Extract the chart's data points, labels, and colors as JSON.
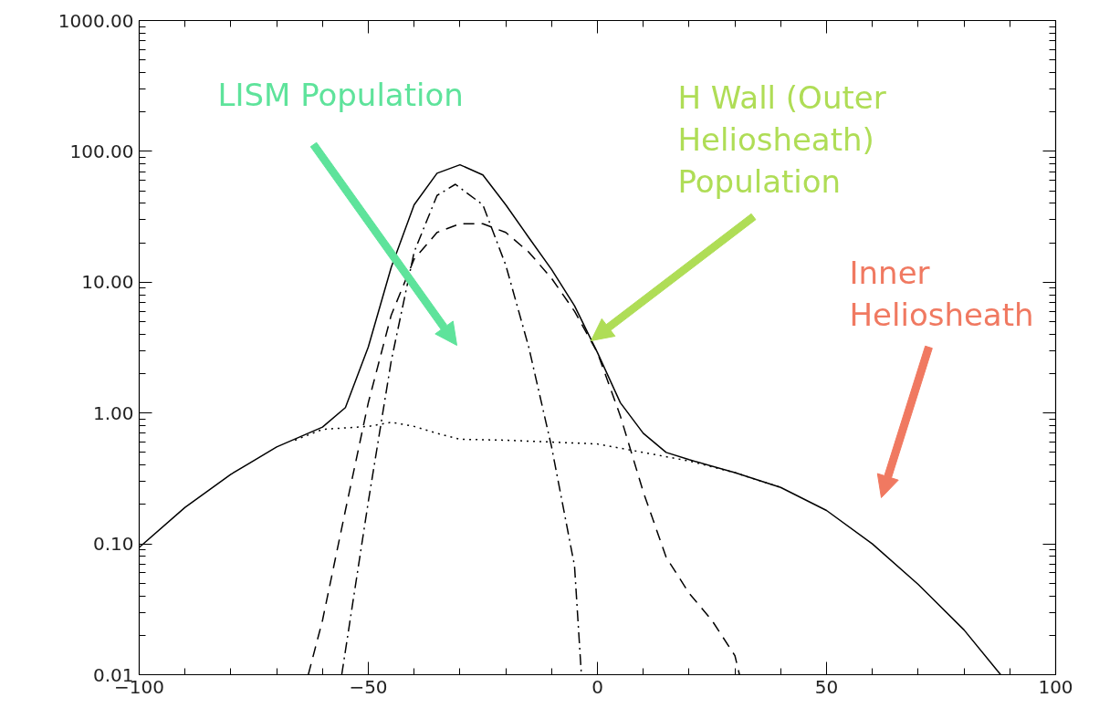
{
  "chart_data": {
    "type": "line",
    "log": "y",
    "grid": false,
    "xlim": [
      -100,
      100
    ],
    "ylim": [
      0.01,
      1000
    ],
    "xticks": [
      {
        "value": -100,
        "label": "−100"
      },
      {
        "value": -50,
        "label": "−50"
      },
      0,
      50,
      100
    ],
    "yticks": [
      {
        "value": 0.01,
        "label": "0.01"
      },
      {
        "value": 0.1,
        "label": "0.10"
      },
      {
        "value": 1,
        "label": "1.00"
      },
      {
        "value": 10,
        "label": "10.00"
      },
      {
        "value": 100,
        "label": "100.00"
      },
      {
        "value": 1000,
        "label": "1000.00"
      }
    ],
    "series": [
      {
        "color": "#000000",
        "line_style": "solid",
        "x": [
          -100,
          -90,
          -80,
          -70,
          -60,
          -55,
          -50,
          -45,
          -40,
          -35,
          -30,
          -25,
          -20,
          -15,
          -10,
          -5,
          0,
          5,
          10,
          15,
          20,
          30,
          40,
          50,
          60,
          70,
          80,
          88
        ],
        "values": [
          0.094,
          0.19,
          0.34,
          0.55,
          0.78,
          1.1,
          3.2,
          13,
          39,
          68,
          79,
          66,
          39,
          22,
          12.5,
          6.6,
          2.9,
          1.2,
          0.7,
          0.5,
          0.44,
          0.35,
          0.27,
          0.18,
          0.1,
          0.049,
          0.022,
          0.01
        ]
      },
      {
        "color": "#000000",
        "line_style": "dashdot",
        "x": [
          -55.8,
          -50,
          -45,
          -40,
          -35,
          -31,
          -25,
          -20,
          -15,
          -10,
          -5,
          -3.5
        ],
        "values": [
          0.01,
          0.21,
          2.5,
          17,
          46,
          56,
          39,
          13.5,
          3.2,
          0.55,
          0.068,
          0.01
        ]
      },
      {
        "color": "#000000",
        "line_style": "dashed",
        "x": [
          -63.1,
          -60,
          -55,
          -50,
          -45,
          -40,
          -35,
          -30,
          -25,
          -20,
          -15,
          -10,
          -5,
          0,
          5,
          10,
          15,
          20,
          25,
          30,
          31
        ],
        "values": [
          0.01,
          0.026,
          0.18,
          1.2,
          5.6,
          15,
          24,
          28,
          28,
          24,
          17,
          10.7,
          6,
          2.9,
          0.95,
          0.25,
          0.079,
          0.042,
          0.026,
          0.014,
          0.01
        ]
      },
      {
        "color": "#000000",
        "line_style": "dotted",
        "x": [
          -66,
          -60,
          -50,
          -45,
          -40,
          -35,
          -30,
          -20,
          -10,
          0,
          10,
          20,
          30,
          40
        ],
        "values": [
          0.62,
          0.75,
          0.79,
          0.85,
          0.79,
          0.7,
          0.63,
          0.62,
          0.6,
          0.58,
          0.5,
          0.43,
          0.35,
          0.27
        ]
      }
    ],
    "annotations": [
      "LISM Population",
      "H Wall (Outer\nHeliosheath)\nPopulation",
      "Inner\nHeliosheath"
    ]
  }
}
